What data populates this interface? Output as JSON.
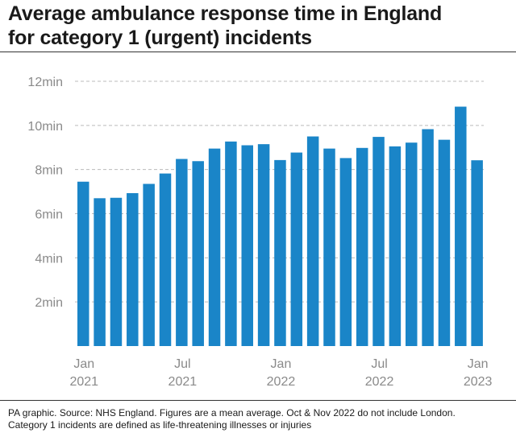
{
  "title_lines": [
    "Average ambulance response time in England",
    "for category 1 (urgent) incidents"
  ],
  "footer": {
    "line1": "PA graphic. Source: NHS England. Figures are a mean average. Oct & Nov 2022 do not include London.",
    "line2": "Category 1 incidents are defined as life-threatening illnesses or injuries"
  },
  "colors": {
    "bar": "#1a85c8",
    "grid": "#bbbbbb",
    "tick_text": "#8a8a8a"
  },
  "chart_data": {
    "type": "bar",
    "title": "Average ambulance response time in England for category 1 (urgent) incidents",
    "xlabel": "",
    "ylabel": "",
    "unit": "min",
    "ylim": [
      0,
      12
    ],
    "yticks": [
      2,
      4,
      6,
      8,
      10,
      12
    ],
    "ytick_labels": [
      "2min",
      "4min",
      "6min",
      "8min",
      "10min",
      "12min"
    ],
    "categories": [
      "Jan 2021",
      "Feb 2021",
      "Mar 2021",
      "Apr 2021",
      "May 2021",
      "Jun 2021",
      "Jul 2021",
      "Aug 2021",
      "Sep 2021",
      "Oct 2021",
      "Nov 2021",
      "Dec 2021",
      "Jan 2022",
      "Feb 2022",
      "Mar 2022",
      "Apr 2022",
      "May 2022",
      "Jun 2022",
      "Jul 2022",
      "Aug 2022",
      "Sep 2022",
      "Oct 2022",
      "Nov 2022",
      "Dec 2022",
      "Jan 2023"
    ],
    "values": [
      7.45,
      6.7,
      6.72,
      6.93,
      7.35,
      7.82,
      8.48,
      8.38,
      8.95,
      9.27,
      9.1,
      9.15,
      8.43,
      8.77,
      9.5,
      8.95,
      8.52,
      8.98,
      9.48,
      9.05,
      9.22,
      9.83,
      9.35,
      10.85,
      8.42
    ],
    "x_tick_labels": [
      {
        "index": 0,
        "line1": "Jan",
        "line2": "2021"
      },
      {
        "index": 6,
        "line1": "Jul",
        "line2": "2021"
      },
      {
        "index": 12,
        "line1": "Jan",
        "line2": "2022"
      },
      {
        "index": 18,
        "line1": "Jul",
        "line2": "2022"
      },
      {
        "index": 24,
        "line1": "Jan",
        "line2": "2023"
      }
    ],
    "grid": true,
    "grid_style": "dashed"
  }
}
